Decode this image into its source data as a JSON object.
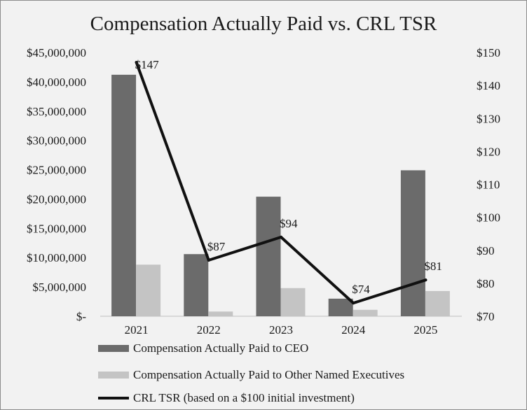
{
  "chart_data": {
    "type": "bar",
    "title": "Compensation Actually Paid vs. CRL TSR",
    "categories": [
      "2021",
      "2022",
      "2023",
      "2024",
      "2025"
    ],
    "series": [
      {
        "name": "Compensation Actually Paid to CEO",
        "kind": "bar",
        "axis": "left",
        "color": "#6b6b6b",
        "values": [
          41200000,
          10600000,
          20400000,
          3000000,
          24900000
        ]
      },
      {
        "name": "Compensation Actually Paid to Other Named Executives",
        "kind": "bar",
        "axis": "left",
        "color": "#c4c4c4",
        "values": [
          8800000,
          800000,
          4800000,
          1100000,
          4300000
        ]
      },
      {
        "name": "CRL TSR (based on a $100 initial investment)",
        "kind": "line",
        "axis": "right",
        "color": "#111111",
        "values": [
          147,
          87,
          94,
          74,
          81
        ]
      }
    ],
    "line_labels": [
      "$147",
      "$87",
      "$94",
      "$74",
      "$81"
    ],
    "left_axis": {
      "ylim": [
        0,
        45000000
      ],
      "tick_labels": [
        "$-",
        "$5,000,000",
        "$10,000,000",
        "$15,000,000",
        "$20,000,000",
        "$25,000,000",
        "$30,000,000",
        "$35,000,000",
        "$40,000,000",
        "$45,000,000"
      ]
    },
    "right_axis": {
      "ylim": [
        70,
        150
      ],
      "tick_labels": [
        "$70",
        "$80",
        "$90",
        "$100",
        "$110",
        "$120",
        "$130",
        "$140",
        "$150"
      ]
    },
    "grid": false,
    "legend_position": "bottom"
  }
}
